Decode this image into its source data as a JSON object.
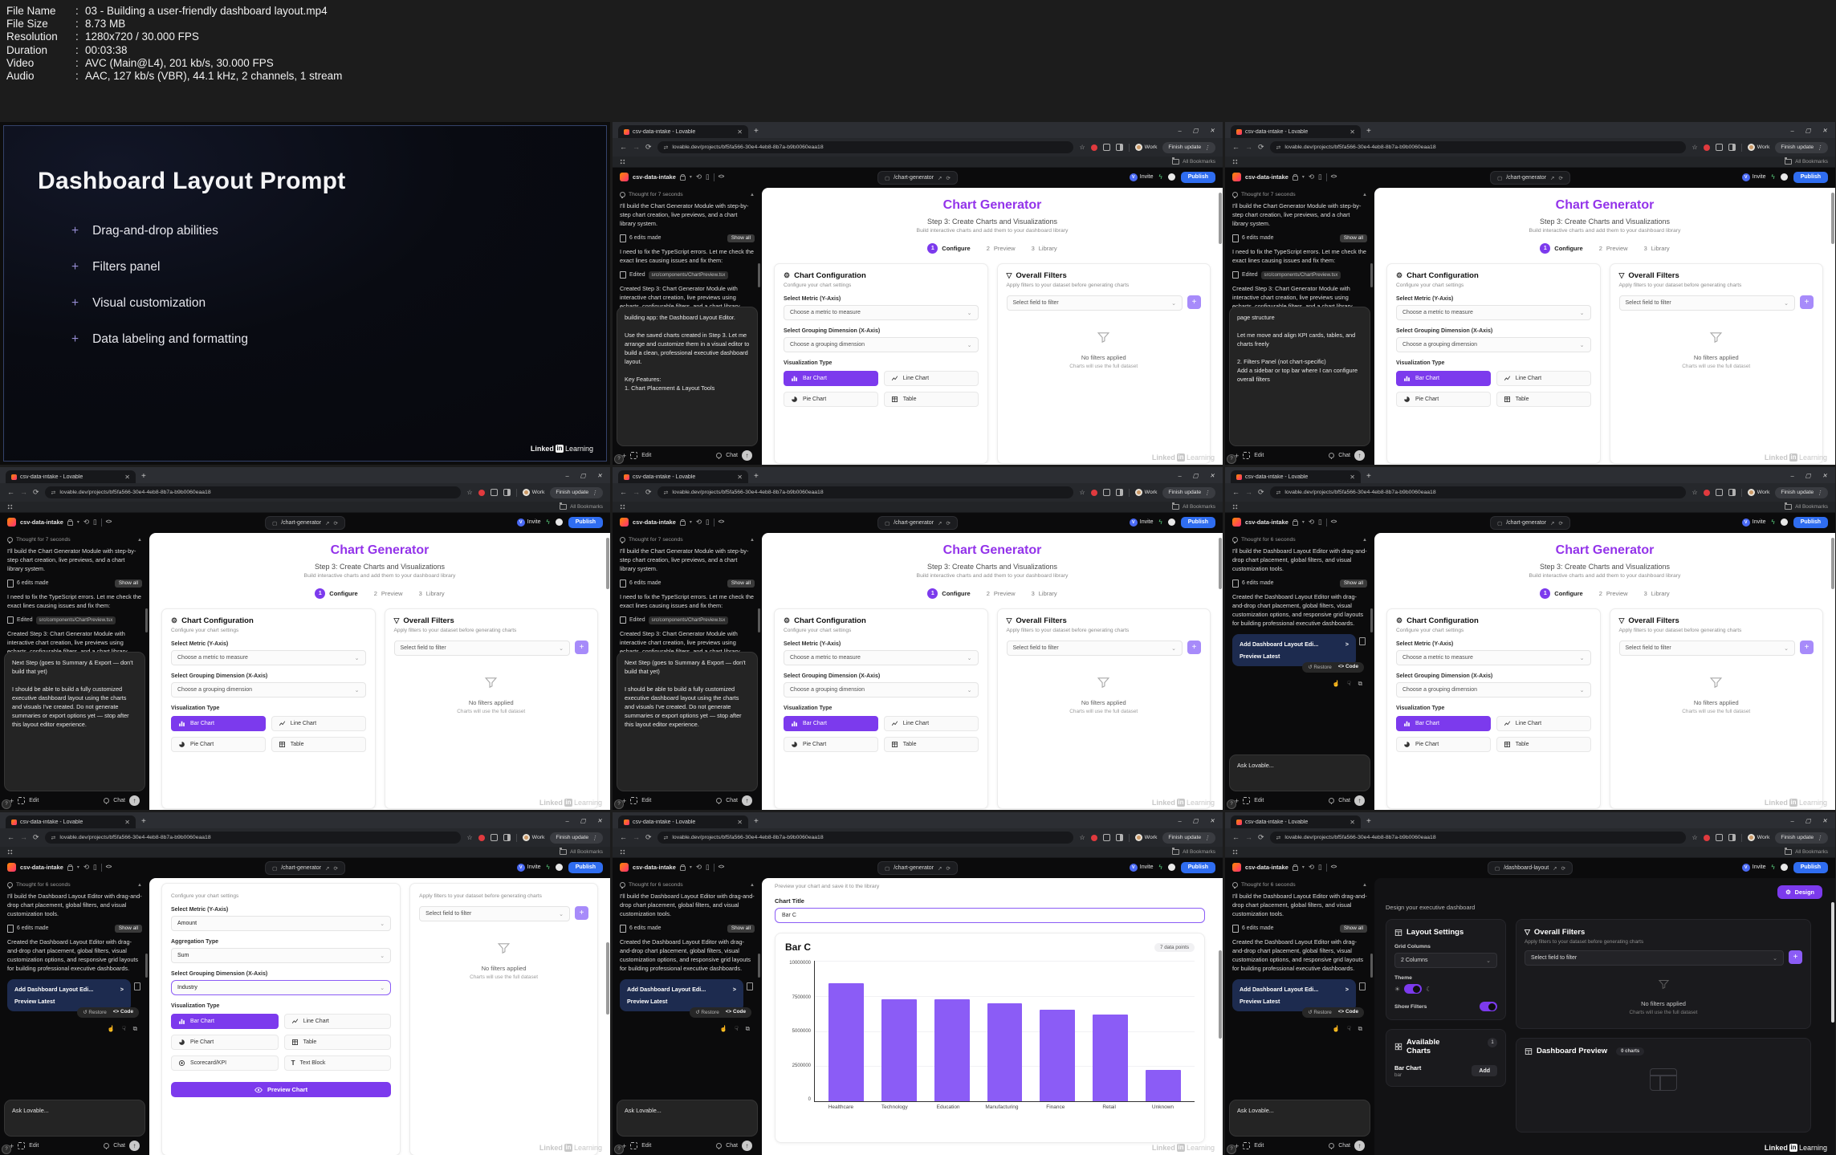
{
  "meta": {
    "colon": ":",
    "rows": [
      {
        "label": "File Name",
        "value": "03 - Building a user-friendly dashboard layout.mp4"
      },
      {
        "label": "File Size",
        "value": "8.73 MB"
      },
      {
        "label": "Resolution",
        "value": "1280x720 / 30.000 FPS"
      },
      {
        "label": "Duration",
        "value": "00:03:38"
      },
      {
        "label": "Video",
        "value": "AVC (Main@L4), 201 kb/s, 30.000 FPS"
      },
      {
        "label": "Audio",
        "value": "AAC, 127 kb/s (VBR), 44.1 kHz, 2 channels, 1 stream"
      }
    ]
  },
  "slide": {
    "title": "Dashboard Layout Prompt",
    "plus": "+",
    "bullets": [
      "Drag-and-drop abilities",
      "Filters panel",
      "Visual customization",
      "Data labeling and formatting"
    ]
  },
  "wm": {
    "linked": "Linked",
    "in": "in",
    "learning": "Learning"
  },
  "browser": {
    "tab": "csv-data-intake - Lovable",
    "url": "lovable.dev/projects/bf5fa566-30e4-4eb8-8b7a-b9b0060eaa18",
    "work": "Work",
    "finish": "Finish update",
    "bookmarks": "All Bookmarks",
    "project": "csv-data-intake",
    "invite": "Invite",
    "invite_initial": "V",
    "publish": "Publish",
    "path_cg": "/chart-generator",
    "path_dl": "/dashboard-layout"
  },
  "chatA": {
    "thought": "Thought for 7 seconds",
    "m1": "I'll build the Chart Generator Module with step-by-step chart creation, live previews, and a chart library system.",
    "edits": "6 edits made",
    "show": "Show all",
    "m2": "I need to fix the TypeScript errors. Let me check the exact lines causing issues and fix them:",
    "edited": "Edited",
    "file": "src/components/ChartPreview.tsx",
    "m3": "Created Step 3: Chart Generator Module with interactive chart creation, live previews using echarts, configurable filters, and a chart library"
  },
  "chatB": {
    "thought": "Thought for 6 seconds",
    "m1": "I'll build the Dashboard Layout Editor with drag-and-drop chart placement, global filters, and visual customization tools.",
    "edits": "6 edits made",
    "show": "Show all",
    "m2": "Created the Dashboard Layout Editor with drag-and-drop chart placement, global filters, visual customization options, and responsive grid layouts for building professional executive dashboards.",
    "card": "Add Dashboard Layout Edi...",
    "arrow": ">",
    "preview": "Preview Latest",
    "restore": "Restore",
    "code_sign": "<>",
    "code": "Code",
    "ask": "Ask Lovable..."
  },
  "inputs": {
    "f2": "building app: the Dashboard Layout Editor.\n\nUse the saved charts created in Step 3. Let me arrange and customize them in a visual editor to build a clean, professional executive dashboard layout.\n\nKey Features:\n1. Chart Placement & Layout Tools",
    "f3": "page structure\n\nLet me move and align KPI cards, tables, and charts freely\n\n2. Filters Panel (not chart-specific)\nAdd a sidebar or top bar where I can configure overall filters",
    "f45": "Next Step (goes to Summary & Export — don't build that yet)\n\nI should be able to build a fully customized executive dashboard layout using the charts and visuals I've created. Do not generate summaries or export options yet — stop after this layout editor experience."
  },
  "cbar": {
    "edit": "Edit",
    "chat": "Chat"
  },
  "cg": {
    "title": "Chart Generator",
    "step": "Step 3: Create Charts and Visualizations",
    "sub": "Build interactive charts and add them to your dashboard library",
    "s1": "1",
    "s1l": "Configure",
    "s2": "2",
    "s2l": "Preview",
    "s3": "3",
    "s3l": "Library",
    "conf_t": "Chart Configuration",
    "conf_s": "Configure your chart settings",
    "metric_l": "Select Metric (Y-Axis)",
    "metric_ph": "Choose a metric to measure",
    "group_l": "Select Grouping Dimension (X-Axis)",
    "group_ph": "Choose a grouping dimension",
    "viz_l": "Visualization Type",
    "bar": "Bar Chart",
    "line": "Line Chart",
    "pie": "Pie Chart",
    "table": "Table",
    "filt_t": "Overall Filters",
    "filt_s": "Apply filters to your dataset before generating charts",
    "filt_ph": "Select field to filter",
    "plus": "+",
    "nof": "No filters applied",
    "nof_s": "Charts will use the full dataset"
  },
  "cfg2": {
    "metric": "Amount",
    "agg_l": "Aggregation Type",
    "agg": "Sum",
    "group": "Industry",
    "score": "Scorecard/KPI",
    "text": "Text Block",
    "preview": "Preview Chart"
  },
  "pv": {
    "sub": "Preview your chart and save it to the library",
    "title_l": "Chart Title",
    "title_v": "Bar C"
  },
  "chart_data": {
    "type": "bar",
    "title": "Bar C",
    "annotation": "7 data points",
    "categories": [
      "Healthcare",
      "Technology",
      "Education",
      "Manufacturing",
      "Finance",
      "Retail",
      "Unknown"
    ],
    "values": [
      8400000,
      7250000,
      7250000,
      6950000,
      6500000,
      6200000,
      2250000
    ],
    "xlabel": "",
    "ylabel": "",
    "ylim": [
      0,
      10000000
    ],
    "yticks": [
      "10000000",
      "7500000",
      "5000000",
      "2500000",
      "0"
    ],
    "bar_color": "#8b5cf6",
    "grid": true,
    "legend": false
  },
  "db": {
    "design": "Design",
    "sub": "Design your executive dashboard",
    "ls": "Layout Settings",
    "grid_l": "Grid Columns",
    "grid_v": "2 Columns",
    "theme": "Theme",
    "showf": "Show Filters",
    "avail": "Available Charts",
    "badge": "1",
    "cname": "Bar Chart",
    "ctype": "bar",
    "add": "Add",
    "dp": "Dashboard Preview",
    "dpb": "0 charts"
  }
}
